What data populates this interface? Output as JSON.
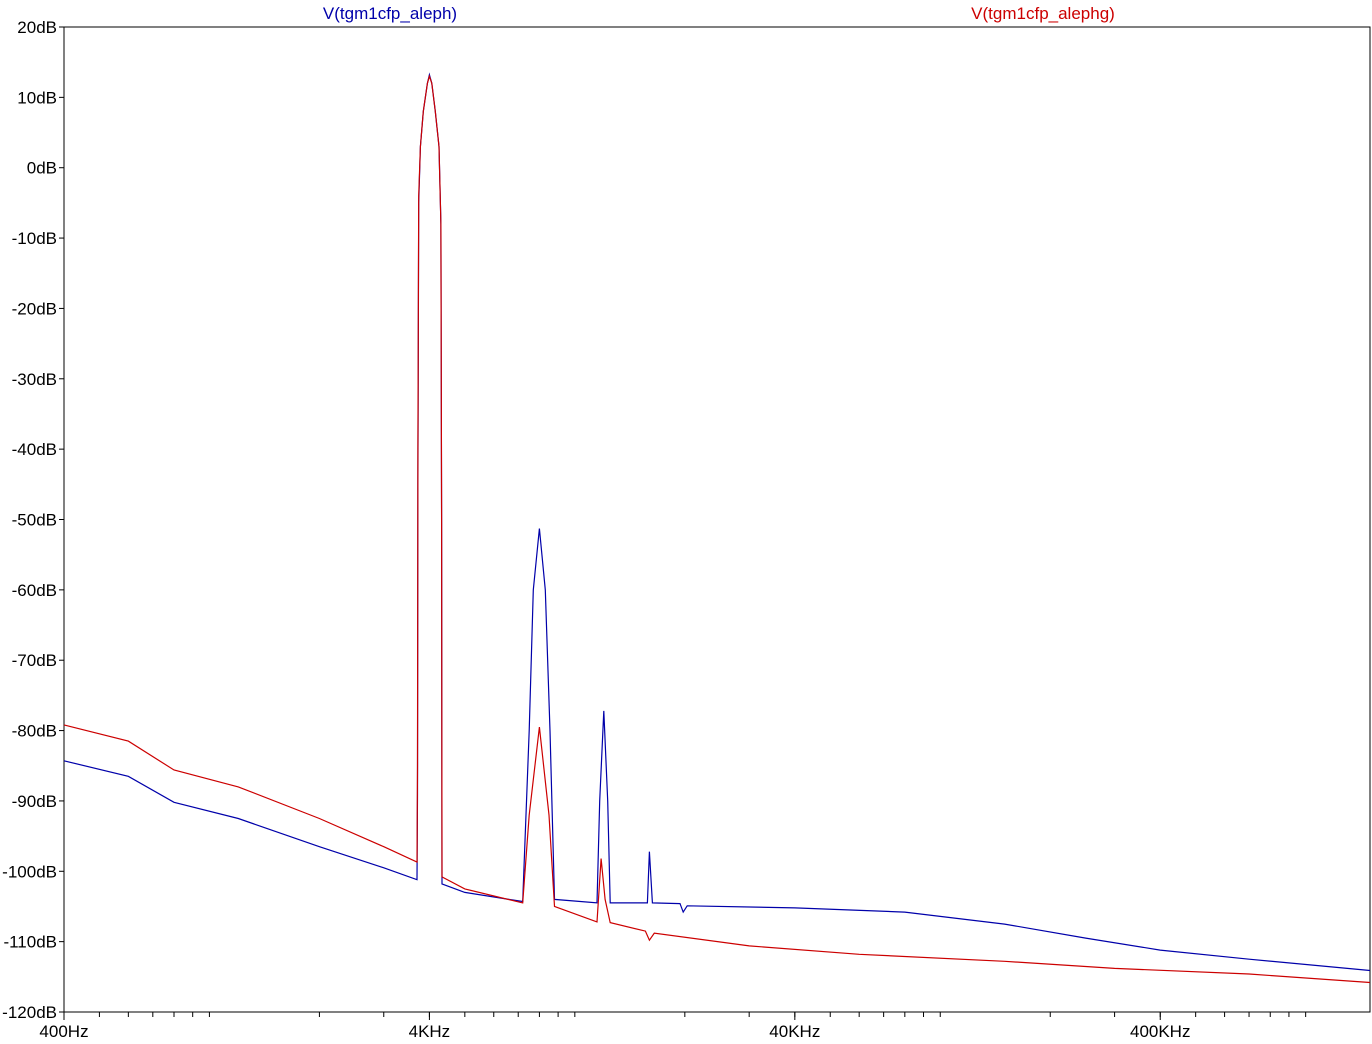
{
  "chart_data": {
    "type": "line",
    "x_scale": "log",
    "xlim_hz": [
      400,
      1500000
    ],
    "ylim_db": [
      -120,
      20
    ],
    "grid": false,
    "legend_placement": "top",
    "y_ticks": [
      {
        "value": 20,
        "label": "20dB"
      },
      {
        "value": 10,
        "label": "10dB"
      },
      {
        "value": 0,
        "label": "0dB"
      },
      {
        "value": -10,
        "label": "-10dB"
      },
      {
        "value": -20,
        "label": "-20dB"
      },
      {
        "value": -30,
        "label": "-30dB"
      },
      {
        "value": -40,
        "label": "-40dB"
      },
      {
        "value": -50,
        "label": "-50dB"
      },
      {
        "value": -60,
        "label": "-60dB"
      },
      {
        "value": -70,
        "label": "-70dB"
      },
      {
        "value": -80,
        "label": "-80dB"
      },
      {
        "value": -90,
        "label": "-90dB"
      },
      {
        "value": -100,
        "label": "-100dB"
      },
      {
        "value": -110,
        "label": "-110dB"
      },
      {
        "value": -120,
        "label": "-120dB"
      }
    ],
    "x_ticks": [
      {
        "value": 400,
        "label": "400Hz"
      },
      {
        "value": 4000,
        "label": "4KHz"
      },
      {
        "value": 40000,
        "label": "40KHz"
      },
      {
        "value": 400000,
        "label": "400KHz"
      }
    ],
    "series": [
      {
        "name": "V(tgm1cfp_aleph)",
        "color": "#0000aa",
        "points": [
          [
            400,
            -84.3
          ],
          [
            600,
            -86.5
          ],
          [
            800,
            -90.2
          ],
          [
            1200,
            -92.5
          ],
          [
            2000,
            -96.5
          ],
          [
            3000,
            -99.5
          ],
          [
            3700,
            -101.2
          ],
          [
            3710,
            -89
          ],
          [
            3720,
            -45
          ],
          [
            3740,
            -5
          ],
          [
            3780,
            3
          ],
          [
            3850,
            8
          ],
          [
            3950,
            12
          ],
          [
            4000,
            13.2
          ],
          [
            4060,
            12
          ],
          [
            4150,
            8
          ],
          [
            4250,
            3
          ],
          [
            4300,
            -8
          ],
          [
            4320,
            -50
          ],
          [
            4330,
            -101.8
          ],
          [
            5000,
            -103
          ],
          [
            7200,
            -104.3
          ],
          [
            7500,
            -80
          ],
          [
            7700,
            -60
          ],
          [
            8000,
            -51.3
          ],
          [
            8300,
            -60
          ],
          [
            8550,
            -80
          ],
          [
            8800,
            -104
          ],
          [
            11500,
            -104.5
          ],
          [
            11700,
            -90
          ],
          [
            12000,
            -77.2
          ],
          [
            12300,
            -90
          ],
          [
            12500,
            -104.5
          ],
          [
            15800,
            -104.5
          ],
          [
            16000,
            -97.2
          ],
          [
            16300,
            -104.5
          ],
          [
            19400,
            -104.6
          ],
          [
            19800,
            -105.8
          ],
          [
            20300,
            -104.9
          ],
          [
            40000,
            -105.2
          ],
          [
            80000,
            -105.8
          ],
          [
            150000,
            -107.5
          ],
          [
            250000,
            -109.5
          ],
          [
            400000,
            -111.2
          ],
          [
            700000,
            -112.5
          ],
          [
            1500000,
            -114.1
          ]
        ]
      },
      {
        "name": "V(tgm1cfp_alephg)",
        "color": "#cc0000",
        "points": [
          [
            400,
            -79.2
          ],
          [
            600,
            -81.5
          ],
          [
            800,
            -85.6
          ],
          [
            1200,
            -88
          ],
          [
            2000,
            -92.5
          ],
          [
            3000,
            -96.5
          ],
          [
            3700,
            -98.7
          ],
          [
            3710,
            -85
          ],
          [
            3720,
            -40
          ],
          [
            3740,
            -4
          ],
          [
            3780,
            3
          ],
          [
            3850,
            8
          ],
          [
            3950,
            12
          ],
          [
            4000,
            13
          ],
          [
            4060,
            12
          ],
          [
            4150,
            8
          ],
          [
            4250,
            3
          ],
          [
            4300,
            -8
          ],
          [
            4320,
            -50
          ],
          [
            4330,
            -100.8
          ],
          [
            5000,
            -102.5
          ],
          [
            7200,
            -104.5
          ],
          [
            7500,
            -92
          ],
          [
            8000,
            -79.5
          ],
          [
            8500,
            -92
          ],
          [
            8800,
            -105
          ],
          [
            11500,
            -107.2
          ],
          [
            11800,
            -98.2
          ],
          [
            12100,
            -104
          ],
          [
            12500,
            -107.3
          ],
          [
            15600,
            -108.5
          ],
          [
            16000,
            -109.8
          ],
          [
            16500,
            -108.8
          ],
          [
            30000,
            -110.6
          ],
          [
            60000,
            -111.8
          ],
          [
            150000,
            -112.8
          ],
          [
            300000,
            -113.8
          ],
          [
            700000,
            -114.6
          ],
          [
            1500000,
            -115.8
          ]
        ]
      }
    ]
  }
}
